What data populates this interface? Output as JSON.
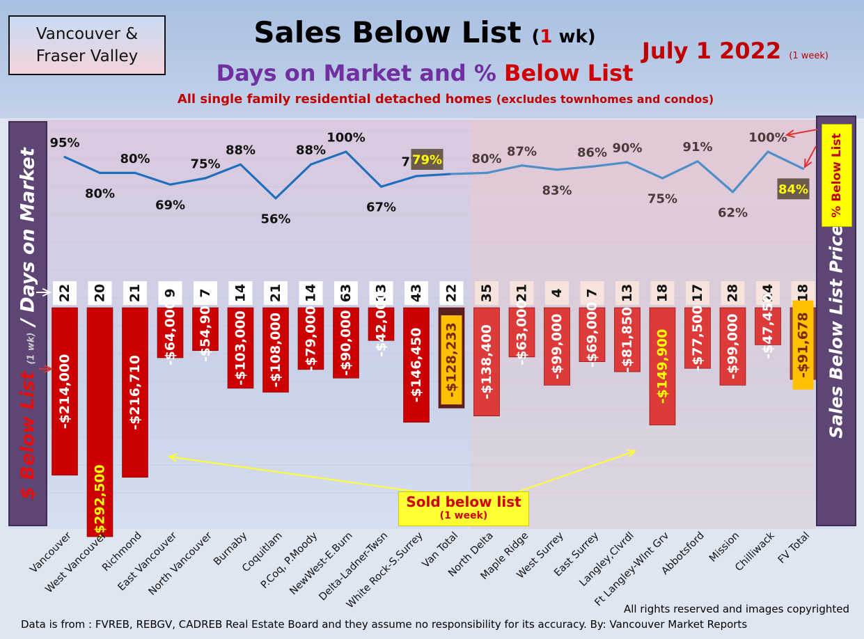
{
  "header": {
    "region_line1": "Vancouver &",
    "region_line2": "Fraser Valley",
    "title_main": "Sales Below List",
    "title_paren_open": "(",
    "title_paren_num": "1",
    "title_paren_rest": " wk)",
    "subtitle_a": "Days on Market and %",
    "subtitle_b": "Below List",
    "note_main": "All single family residential detached homes",
    "note_small": "(excludes townhomes and condos)",
    "date_main": "July 1  2022",
    "date_small": "(1 week)"
  },
  "side_labels": {
    "left_a": "$ Below List",
    "left_b": "(1 wk)",
    "left_c": "/ Days on Market",
    "right": "Sales Below List Price",
    "pct_below_list": "% Below List"
  },
  "callout": {
    "line1": "Sold below list",
    "line2": "(1 week)"
  },
  "footer": {
    "copyright": "All rights reserved and  images copyrighted",
    "source": "Data is from : FVREB, REBGV, CADREB Real Estate Board and they assume no responsibility for its accuracy. By: Vancouver Market Reports"
  },
  "colors": {
    "van_bar": "#cc0000",
    "fv_bar": "#dd3a3a",
    "van_total_bar": "#5a1f1f",
    "fv_total_bar": "#8b4a44",
    "line_van": "#1f6fbf",
    "line_fv": "#4f8fc8",
    "highlight_label": "#ffc000",
    "yellow_label": "#ffff00"
  },
  "chart_data": {
    "type": "bar",
    "categories": [
      "Vancouver",
      "West Vancouver",
      "Richmond",
      "East Vancouver",
      "North Vancouver",
      "Burnaby",
      "Coquitlam",
      "P.Coq, P.Moody",
      "NewWest-E.Burn",
      "Delta-Ladner-Twsn",
      "White Rock-S.Surrey",
      "Van Total",
      "North Delta",
      "Maple Ridge",
      "West Surrey",
      "East Surrey",
      "Langley,Clvrdl",
      "Ft Langley-Wlnt Grv",
      "Abbotsford",
      "Mission",
      "Chilliwack",
      "FV Total"
    ],
    "series": [
      {
        "name": "$ Below List",
        "values": [
          -214000,
          -292500,
          -216710,
          -64000,
          -54900,
          -103000,
          -108000,
          -79000,
          -90000,
          -42000,
          -146450,
          -128233,
          -138400,
          -63000,
          -99000,
          -69000,
          -81850,
          -149900,
          -77500,
          -99000,
          -47450,
          -91678
        ],
        "labels": [
          "-$214,000",
          "-$292,500",
          "-$216,710",
          "-$64,000",
          "-$54,900",
          "-$103,000",
          "-$108,000",
          "-$79,000",
          "-$90,000",
          "-$42,000",
          "-$146,450",
          "-$128,233",
          "-$138,400",
          "-$63,000",
          "-$99,000",
          "-$69,000",
          "-$81,850",
          "-$149,900",
          "-$77,500",
          "-$99,000",
          "-$47,450",
          "-$91,678"
        ]
      },
      {
        "name": "Days on Market",
        "values": [
          22,
          20,
          21,
          9,
          7,
          14,
          21,
          14,
          63,
          13,
          43,
          22,
          35,
          21,
          4,
          7,
          13,
          18,
          17,
          28,
          24,
          18
        ]
      },
      {
        "name": "% Below List",
        "type": "line",
        "values": [
          95,
          80,
          80,
          69,
          75,
          88,
          56,
          88,
          100,
          67,
          77,
          79,
          80,
          87,
          83,
          86,
          90,
          75,
          91,
          62,
          100,
          84
        ],
        "labels": [
          "95%",
          "80%",
          "80%",
          "69%",
          "75%",
          "88%",
          "56%",
          "88%",
          "100%",
          "67%",
          "77%",
          "79%",
          "80%",
          "87%",
          "83%",
          "86%",
          "90%",
          "75%",
          "91%",
          "62%",
          "100%",
          "84%"
        ]
      }
    ],
    "grid": true,
    "legend": "none"
  }
}
